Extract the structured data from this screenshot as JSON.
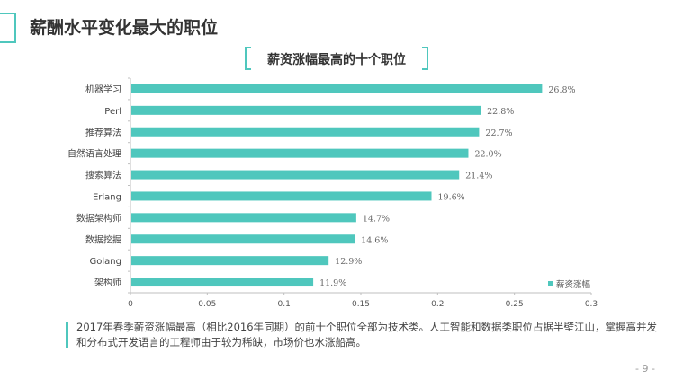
{
  "header": {
    "title": "薪酬水平变化最大的职位"
  },
  "footer": {
    "caption": "2017年春季薪资涨幅最高（相比2016年同期）的前十个职位全部为技术类。人工智能和数据类职位占据半壁江山，掌握高并发和分布式开发语言的工程师由于较为稀缺，市场价也水涨船高。",
    "page_number": "- 9 -"
  },
  "colors": {
    "accent": "#4fc7bd",
    "bar": "#4fc7bd"
  },
  "chart_data": {
    "type": "bar",
    "orientation": "horizontal",
    "title": "薪资涨幅最高的十个职位",
    "categories": [
      "机器学习",
      "Perl",
      "推荐算法",
      "自然语言处理",
      "搜索算法",
      "Erlang",
      "数据架构师",
      "数据挖掘",
      "Golang",
      "架构师"
    ],
    "series": [
      {
        "name": "薪资涨幅",
        "values": [
          0.268,
          0.228,
          0.227,
          0.22,
          0.214,
          0.196,
          0.147,
          0.146,
          0.129,
          0.119
        ],
        "labels": [
          "26.8%",
          "22.8%",
          "22.7%",
          "22.0%",
          "21.4%",
          "19.6%",
          "14.7%",
          "14.6%",
          "12.9%",
          "11.9%"
        ]
      }
    ],
    "xlim": [
      0,
      0.3
    ],
    "xticks": [
      "0",
      "0.05",
      "0.1",
      "0.15",
      "0.2",
      "0.25",
      "0.3"
    ],
    "xtick_values": [
      0,
      0.05,
      0.1,
      0.15,
      0.2,
      0.25,
      0.3
    ],
    "legend_position": "bottom-right",
    "grid": false
  }
}
